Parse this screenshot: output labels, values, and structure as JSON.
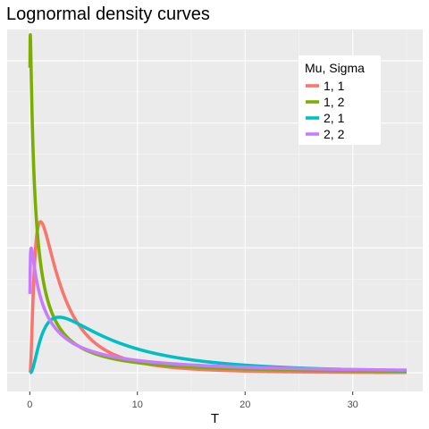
{
  "chart_data": {
    "type": "line",
    "title": "Lognormal density curves",
    "xlabel": "T",
    "ylabel": "",
    "xlim": [
      -2.1,
      36.5
    ],
    "ylim": [
      -0.03,
      0.55
    ],
    "x_ticks": [
      0,
      10,
      20,
      30
    ],
    "x_tick_labels": [
      "0",
      "10",
      "20",
      "30"
    ],
    "x_range": [
      0.02,
      35
    ],
    "legend": {
      "title": "Mu, Sigma",
      "position": "top-right"
    },
    "grid": true,
    "series": [
      {
        "name": "1, 1",
        "mu": 1,
        "sigma": 1,
        "color": "#F8766D"
      },
      {
        "name": "1, 2",
        "mu": 1,
        "sigma": 2,
        "color": "#7CAE00"
      },
      {
        "name": "2, 1",
        "mu": 2,
        "sigma": 1,
        "color": "#00BFC4"
      },
      {
        "name": "2, 2",
        "mu": 2,
        "sigma": 2,
        "color": "#C77CFF"
      }
    ]
  },
  "colors": {
    "panel_background": "#EBEBEB",
    "grid_major": "#FFFFFF",
    "grid_minor": "#F5F5F5",
    "tick_mark": "#333333",
    "legend_background": "#FFFFFF"
  }
}
